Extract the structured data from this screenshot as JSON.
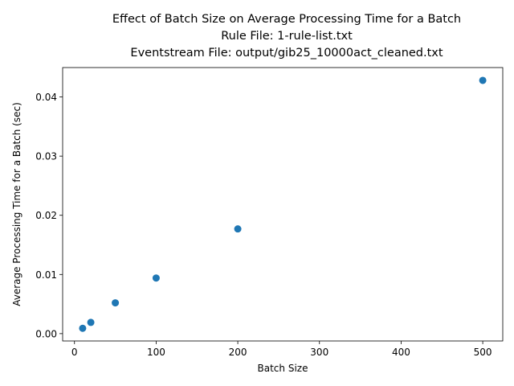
{
  "chart_data": {
    "type": "scatter",
    "title_lines": [
      "Effect of Batch Size on Average Processing Time for a Batch",
      "Rule File: 1-rule-list.txt",
      "Eventstream File: output/gib25_10000act_cleaned.txt"
    ],
    "xlabel": "Batch Size",
    "ylabel": "Average Processing Time for a Batch (sec)",
    "x": [
      10,
      20,
      50,
      100,
      200,
      500
    ],
    "y": [
      0.0009,
      0.0019,
      0.0052,
      0.0094,
      0.0177,
      0.0428
    ],
    "xlim": [
      -14.5,
      524.5
    ],
    "ylim": [
      -0.00124,
      0.04497
    ],
    "xticks": [
      0,
      100,
      200,
      300,
      400,
      500
    ],
    "xtick_labels": [
      "0",
      "100",
      "200",
      "300",
      "400",
      "500"
    ],
    "yticks": [
      0.0,
      0.01,
      0.02,
      0.03,
      0.04
    ],
    "ytick_labels": [
      "0.00",
      "0.01",
      "0.02",
      "0.03",
      "0.04"
    ],
    "grid": false,
    "marker_color": "#1f77b4"
  }
}
